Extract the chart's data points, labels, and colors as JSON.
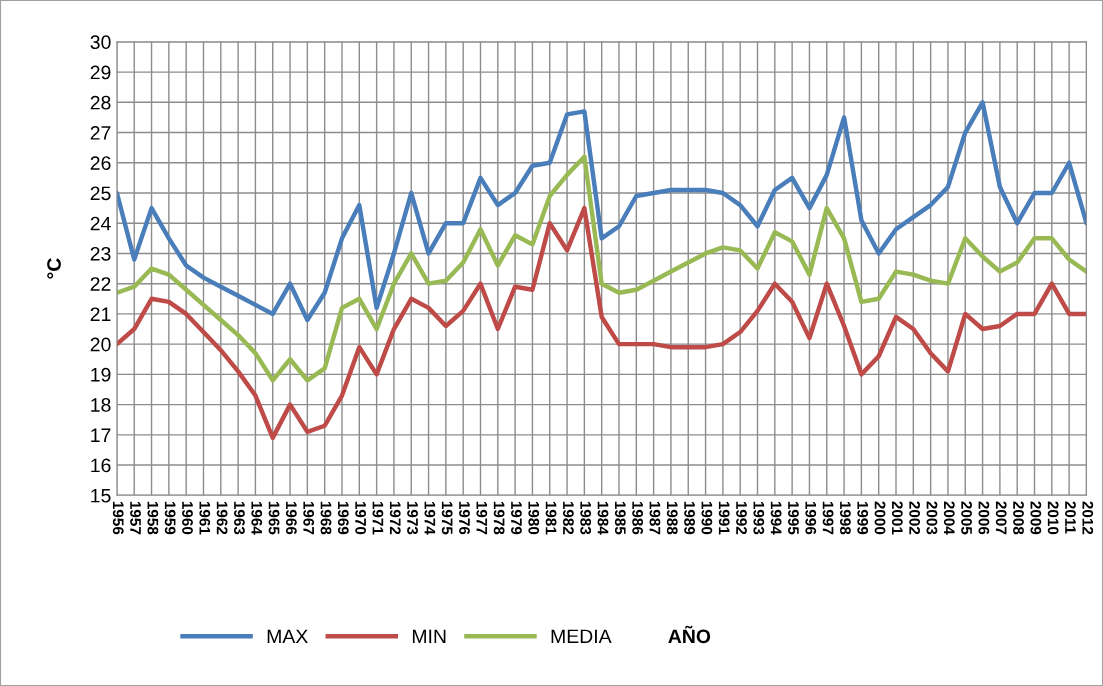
{
  "chart_data": {
    "type": "line",
    "xlabel": "AÑO",
    "ylabel": "°C",
    "categories": [
      "1956",
      "1957",
      "1958",
      "1959",
      "1960",
      "1961",
      "1962",
      "1963",
      "1964",
      "1965",
      "1966",
      "1967",
      "1968",
      "1969",
      "1970",
      "1971",
      "1972",
      "1973",
      "1974",
      "1975",
      "1976",
      "1977",
      "1978",
      "1979",
      "1980",
      "1981",
      "1982",
      "1983",
      "1984",
      "1985",
      "1986",
      "1987",
      "1988",
      "1989",
      "1990",
      "1991",
      "1992",
      "1993",
      "1994",
      "1995",
      "1996",
      "1997",
      "1998",
      "1999",
      "2000",
      "2001",
      "2002",
      "2003",
      "2004",
      "2005",
      "2006",
      "2007",
      "2008",
      "2009",
      "2010",
      "2011",
      "2012"
    ],
    "series": [
      {
        "name": "MAX",
        "color": "#4a7ebb",
        "values": [
          25,
          22.8,
          24.5,
          23.5,
          22.6,
          22.2,
          21.9,
          21.6,
          21.3,
          21.0,
          22.0,
          20.8,
          21.7,
          23.5,
          24.6,
          21.2,
          23.0,
          25.0,
          23.0,
          24.0,
          24.0,
          25.5,
          24.6,
          25.0,
          25.9,
          26.0,
          27.6,
          27.7,
          23.5,
          23.9,
          24.9,
          25.0,
          25.1,
          25.1,
          25.1,
          25.0,
          24.6,
          23.9,
          25.1,
          25.5,
          24.5,
          25.6,
          27.5,
          24.1,
          23.0,
          23.8,
          24.2,
          24.6,
          25.2,
          27.0,
          28.0,
          25.2,
          24.0,
          25.0,
          25.0,
          26.0,
          24.0
        ]
      },
      {
        "name": "MIN",
        "color": "#be4b48",
        "values": [
          20.0,
          20.5,
          21.5,
          21.4,
          21.0,
          20.4,
          19.8,
          19.1,
          18.3,
          16.9,
          18.0,
          17.1,
          17.3,
          18.3,
          19.9,
          19.0,
          20.5,
          21.5,
          21.2,
          20.6,
          21.1,
          22.0,
          20.5,
          21.9,
          21.8,
          24.0,
          23.1,
          24.5,
          20.9,
          20.0,
          20.0,
          20.0,
          19.9,
          19.9,
          19.9,
          20.0,
          20.4,
          21.1,
          22.0,
          21.4,
          20.2,
          22.0,
          20.6,
          19.0,
          19.6,
          20.9,
          20.5,
          19.7,
          19.1,
          21.0,
          20.5,
          20.6,
          21.0,
          21.0,
          22.0,
          21.0,
          21.0
        ]
      },
      {
        "name": "MEDIA",
        "color": "#98b954",
        "values": [
          21.7,
          21.9,
          22.5,
          22.3,
          21.8,
          21.3,
          20.8,
          20.3,
          19.7,
          18.8,
          19.5,
          18.8,
          19.2,
          21.2,
          21.5,
          20.5,
          22.0,
          23.0,
          22.0,
          22.1,
          22.7,
          23.8,
          22.6,
          23.6,
          23.3,
          24.9,
          25.6,
          26.2,
          22.0,
          21.7,
          21.8,
          22.1,
          22.4,
          22.7,
          23.0,
          23.2,
          23.1,
          22.5,
          23.7,
          23.4,
          22.3,
          24.5,
          23.5,
          21.4,
          21.5,
          22.4,
          22.3,
          22.1,
          22.0,
          23.5,
          22.9,
          22.4,
          22.7,
          23.5,
          23.5,
          22.8,
          22.4
        ]
      }
    ],
    "ylim": [
      15,
      30
    ],
    "yticks": [
      15,
      16,
      17,
      18,
      19,
      20,
      21,
      22,
      23,
      24,
      25,
      26,
      27,
      28,
      29,
      30
    ],
    "grid": true,
    "legend": "bottom",
    "line_style": "solid"
  }
}
